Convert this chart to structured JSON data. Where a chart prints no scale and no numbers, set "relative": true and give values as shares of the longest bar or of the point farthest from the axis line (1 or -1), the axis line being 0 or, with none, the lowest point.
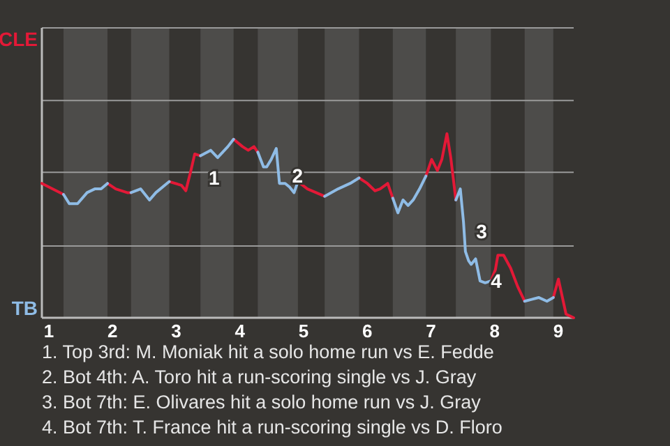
{
  "chart_data": {
    "type": "line",
    "relative": true,
    "xlim": [
      0.89,
      9.24
    ],
    "xticks": [
      1,
      2,
      3,
      4,
      5,
      6,
      7,
      8,
      9
    ],
    "marker": "none",
    "line_style": "solid",
    "ref_lines": [
      {
        "axis": "y",
        "value": 0.39,
        "color": "#9a9a9a"
      },
      {
        "axis": "y",
        "value": 0.79,
        "color": "#9a9a9a"
      },
      {
        "axis": "y",
        "value": 1.18,
        "color": "#9a9a9a"
      }
    ],
    "bands": [
      {
        "axis": "x",
        "from": 1.23,
        "to": 1.92,
        "color": "#4d4c4a"
      },
      {
        "axis": "x",
        "from": 2.29,
        "to": 2.89,
        "color": "#4d4c4a"
      },
      {
        "axis": "x",
        "from": 3.38,
        "to": 3.9,
        "color": "#4d4c4a"
      },
      {
        "axis": "x",
        "from": 4.28,
        "to": 4.91,
        "color": "#4d4c4a"
      },
      {
        "axis": "x",
        "from": 5.33,
        "to": 5.87,
        "color": "#4d4c4a"
      },
      {
        "axis": "x",
        "from": 6.4,
        "to": 6.92,
        "color": "#4d4c4a"
      },
      {
        "axis": "x",
        "from": 7.39,
        "to": 7.94,
        "color": "#4d4c4a"
      },
      {
        "axis": "x",
        "from": 8.47,
        "to": 8.92,
        "color": "#4d4c4a"
      }
    ],
    "series": [
      {
        "name": "CLE",
        "color": "#e31937",
        "x": [
          0.89,
          1.23,
          null,
          1.92,
          2.05,
          2.23,
          2.29,
          null,
          2.89,
          3.08,
          3.15,
          3.23,
          3.29,
          3.38,
          null,
          3.9,
          4.04,
          4.13,
          4.22,
          4.28,
          null,
          4.91,
          5.06,
          5.33,
          null,
          5.87,
          6,
          6.12,
          6.2,
          6.28,
          6.32,
          6.4,
          null,
          6.92,
          7.01,
          7.1,
          7.17,
          7.25,
          7.31,
          7.39,
          null,
          7.94,
          8.01,
          8.05,
          8.14,
          8.25,
          8.36,
          8.47,
          null,
          8.92,
          9,
          9.12,
          9.24
        ],
        "values": [
          0.73,
          0.67,
          null,
          0.73,
          0.7,
          0.68,
          0.68,
          null,
          0.74,
          0.72,
          0.69,
          0.8,
          0.89,
          0.88,
          null,
          0.97,
          0.93,
          0.91,
          0.93,
          0.9,
          null,
          0.74,
          0.7,
          0.66,
          null,
          0.76,
          0.73,
          0.69,
          0.7,
          0.72,
          0.73,
          0.65,
          null,
          0.77,
          0.86,
          0.8,
          0.86,
          1,
          0.87,
          0.64,
          null,
          0.2,
          0.26,
          0.34,
          0.34,
          0.27,
          0.17,
          0.09,
          null,
          0.11,
          0.21,
          0.02,
          0
        ]
      },
      {
        "name": "TB",
        "color": "#8fbce6",
        "x": [
          1.23,
          1.32,
          1.45,
          1.6,
          1.72,
          1.82,
          1.92,
          null,
          2.29,
          2.29,
          2.44,
          2.58,
          2.68,
          2.89,
          null,
          3.38,
          3.38,
          3.54,
          3.65,
          3.81,
          3.9,
          null,
          4.28,
          4.28,
          4.37,
          4.42,
          4.49,
          4.57,
          4.62,
          4.71,
          4.78,
          4.85,
          4.91,
          null,
          5.33,
          5.33,
          5.54,
          5.73,
          5.87,
          null,
          6.4,
          6.4,
          6.48,
          6.56,
          6.64,
          6.72,
          6.82,
          6.92,
          null,
          7.39,
          7.39,
          7.46,
          7.51,
          7.54,
          7.59,
          7.63,
          7.7,
          7.77,
          7.85,
          7.94,
          null,
          8.47,
          8.47,
          8.58,
          8.69,
          8.82,
          8.92
        ],
        "values": [
          0.67,
          0.62,
          0.62,
          0.68,
          0.7,
          0.7,
          0.73,
          null,
          0.68,
          0.68,
          0.7,
          0.64,
          0.68,
          0.74,
          null,
          0.88,
          0.88,
          0.91,
          0.87,
          0.93,
          0.97,
          null,
          0.9,
          0.9,
          0.82,
          0.82,
          0.86,
          0.92,
          0.73,
          0.73,
          0.71,
          0.68,
          0.74,
          null,
          0.66,
          0.66,
          0.7,
          0.73,
          0.76,
          null,
          0.65,
          0.65,
          0.57,
          0.64,
          0.61,
          0.64,
          0.7,
          0.77,
          null,
          0.64,
          0.64,
          0.7,
          0.52,
          0.36,
          0.31,
          0.29,
          0.32,
          0.2,
          0.19,
          0.2,
          null,
          0.09,
          0.09,
          0.1,
          0.11,
          0.09,
          0.11
        ]
      }
    ],
    "annotations": [
      {
        "text": "1",
        "x": 3.4,
        "y": 0.76
      },
      {
        "text": "2",
        "x": 4.71,
        "y": 0.77
      },
      {
        "text": "3",
        "x": 7.6,
        "y": 0.47
      },
      {
        "text": "4",
        "x": 7.83,
        "y": 0.2
      },
      "1. Top 3rd: M. Moniak hit a solo home run vs E. Fedde",
      "2. Bot 4th: A. Toro hit a run-scoring single vs J. Gray",
      "3. Bot 7th: E. Olivares hit a solo home run vs J. Gray",
      "4. Bot 7th: T. France hit a run-scoring single vs D. Floro"
    ]
  }
}
